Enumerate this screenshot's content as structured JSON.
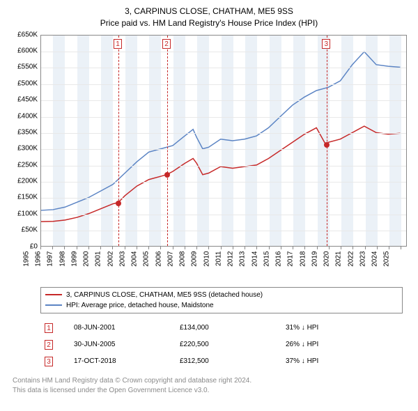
{
  "title": {
    "line1": "3, CARPINUS CLOSE, CHATHAM, ME5 9SS",
    "line2": "Price paid vs. HM Land Registry's House Price Index (HPI)"
  },
  "chart": {
    "type": "line",
    "background_color": "#ffffff",
    "grid_color": "#e8e8e8",
    "axis_color": "#888888",
    "band_color": "#e7eef6",
    "font_family": "Arial",
    "title_fontsize": 12,
    "axis_fontsize": 10,
    "xlim": [
      1995,
      2025.5
    ],
    "ylim": [
      0,
      650000
    ],
    "ytick_step": 50000,
    "yticks": [
      "£0",
      "£50K",
      "£100K",
      "£150K",
      "£200K",
      "£250K",
      "£300K",
      "£350K",
      "£400K",
      "£450K",
      "£500K",
      "£550K",
      "£600K",
      "£650K"
    ],
    "xticks": [
      1995,
      1996,
      1997,
      1998,
      1999,
      2000,
      2001,
      2002,
      2003,
      2004,
      2005,
      2006,
      2007,
      2008,
      2009,
      2010,
      2011,
      2012,
      2013,
      2014,
      2015,
      2016,
      2017,
      2018,
      2019,
      2020,
      2021,
      2022,
      2023,
      2024,
      2025
    ],
    "alternating_bands": true,
    "series": [
      {
        "id": "property",
        "label": "3, CARPINUS CLOSE, CHATHAM, ME5 9SS (detached house)",
        "color": "#c62828",
        "line_width": 1.5,
        "data": [
          [
            1995,
            75000
          ],
          [
            1996,
            76000
          ],
          [
            1997,
            80000
          ],
          [
            1998,
            88000
          ],
          [
            1999,
            100000
          ],
          [
            2000,
            115000
          ],
          [
            2001,
            130000
          ],
          [
            2001.44,
            134000
          ],
          [
            2002,
            155000
          ],
          [
            2003,
            185000
          ],
          [
            2004,
            205000
          ],
          [
            2005,
            215000
          ],
          [
            2005.5,
            220500
          ],
          [
            2006,
            230000
          ],
          [
            2007,
            255000
          ],
          [
            2007.7,
            270000
          ],
          [
            2008,
            255000
          ],
          [
            2008.5,
            220000
          ],
          [
            2009,
            225000
          ],
          [
            2010,
            245000
          ],
          [
            2011,
            240000
          ],
          [
            2012,
            245000
          ],
          [
            2013,
            250000
          ],
          [
            2014,
            270000
          ],
          [
            2015,
            295000
          ],
          [
            2016,
            320000
          ],
          [
            2017,
            345000
          ],
          [
            2018,
            365000
          ],
          [
            2018.79,
            312500
          ],
          [
            2019,
            320000
          ],
          [
            2020,
            330000
          ],
          [
            2021,
            350000
          ],
          [
            2022,
            370000
          ],
          [
            2023,
            350000
          ],
          [
            2024,
            345000
          ],
          [
            2025,
            348000
          ]
        ]
      },
      {
        "id": "hpi",
        "label": "HPI: Average price, detached house, Maidstone",
        "color": "#5b84c4",
        "line_width": 1.5,
        "data": [
          [
            1995,
            110000
          ],
          [
            1996,
            112000
          ],
          [
            1997,
            120000
          ],
          [
            1998,
            135000
          ],
          [
            1999,
            150000
          ],
          [
            2000,
            170000
          ],
          [
            2001,
            190000
          ],
          [
            2002,
            225000
          ],
          [
            2003,
            260000
          ],
          [
            2004,
            290000
          ],
          [
            2005,
            300000
          ],
          [
            2006,
            310000
          ],
          [
            2007,
            340000
          ],
          [
            2007.7,
            360000
          ],
          [
            2008,
            335000
          ],
          [
            2008.5,
            300000
          ],
          [
            2009,
            305000
          ],
          [
            2010,
            330000
          ],
          [
            2011,
            325000
          ],
          [
            2012,
            330000
          ],
          [
            2013,
            340000
          ],
          [
            2014,
            365000
          ],
          [
            2015,
            400000
          ],
          [
            2016,
            435000
          ],
          [
            2017,
            460000
          ],
          [
            2018,
            480000
          ],
          [
            2019,
            490000
          ],
          [
            2020,
            510000
          ],
          [
            2021,
            560000
          ],
          [
            2022,
            600000
          ],
          [
            2023,
            560000
          ],
          [
            2024,
            555000
          ],
          [
            2025,
            552000
          ]
        ]
      }
    ],
    "event_markers": [
      {
        "num": "1",
        "x": 2001.44,
        "y": 134000,
        "line_color": "#c62828"
      },
      {
        "num": "2",
        "x": 2005.5,
        "y": 220500,
        "line_color": "#c62828"
      },
      {
        "num": "3",
        "x": 2018.79,
        "y": 312500,
        "line_color": "#c62828"
      }
    ]
  },
  "legend": {
    "rows": [
      {
        "color": "#c62828",
        "label": "3, CARPINUS CLOSE, CHATHAM, ME5 9SS (detached house)"
      },
      {
        "color": "#5b84c4",
        "label": "HPI: Average price, detached house, Maidstone"
      }
    ]
  },
  "sales": {
    "diff_arrow": "↓",
    "diff_label": "HPI",
    "rows": [
      {
        "num": "1",
        "date": "08-JUN-2001",
        "price": "£134,000",
        "diff_pct": "31%"
      },
      {
        "num": "2",
        "date": "30-JUN-2005",
        "price": "£220,500",
        "diff_pct": "26%"
      },
      {
        "num": "3",
        "date": "17-OCT-2018",
        "price": "£312,500",
        "diff_pct": "37%"
      }
    ]
  },
  "footer": {
    "line1": "Contains HM Land Registry data © Crown copyright and database right 2024.",
    "line2": "This data is licensed under the Open Government Licence v3.0."
  }
}
